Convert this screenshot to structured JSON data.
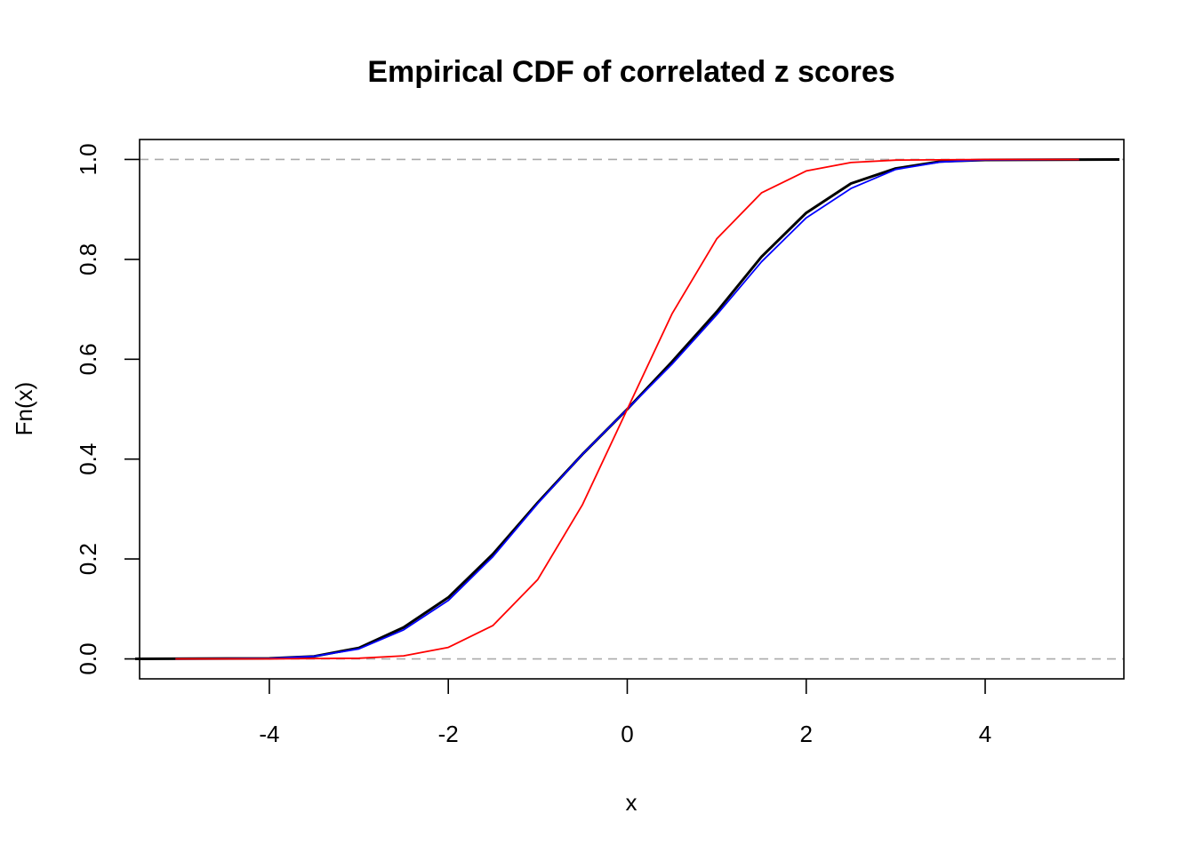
{
  "chart_data": {
    "type": "line",
    "title": "Empirical CDF of correlated z scores",
    "xlabel": "x",
    "ylabel": "Fn(x)",
    "xlim": [
      -5.45,
      5.55
    ],
    "ylim": [
      -0.04,
      1.04
    ],
    "xticks": [
      -4,
      -2,
      0,
      2,
      4
    ],
    "xtick_labels": [
      "-4",
      "-2",
      "0",
      "2",
      "4"
    ],
    "yticks": [
      0.0,
      0.2,
      0.4,
      0.6,
      0.8,
      1.0
    ],
    "ytick_labels": [
      "0.0",
      "0.2",
      "0.4",
      "0.6",
      "0.8",
      "1.0"
    ],
    "reference_lines": [
      0,
      1
    ],
    "grid": false,
    "legend": "none",
    "series": [
      {
        "color": "#000000",
        "x": [
          -5.5,
          -4.0,
          -3.5,
          -3.0,
          -2.5,
          -2.0,
          -1.5,
          -1.0,
          -0.5,
          0.0,
          0.5,
          1.0,
          1.5,
          2.0,
          2.5,
          3.0,
          3.5,
          4.0,
          5.5
        ],
        "y": [
          0.0,
          0.001,
          0.005,
          0.022,
          0.063,
          0.123,
          0.21,
          0.313,
          0.41,
          0.5,
          0.595,
          0.695,
          0.805,
          0.893,
          0.952,
          0.982,
          0.996,
          0.999,
          1.0
        ]
      },
      {
        "color": "#0000ff",
        "x": [
          -5.05,
          -4.0,
          -3.5,
          -3.0,
          -2.5,
          -2.0,
          -1.5,
          -1.0,
          -0.5,
          0.0,
          0.5,
          1.0,
          1.5,
          2.0,
          2.5,
          3.0,
          3.5,
          4.0,
          5.05
        ],
        "y": [
          0.0,
          0.001,
          0.005,
          0.02,
          0.058,
          0.117,
          0.205,
          0.311,
          0.41,
          0.5,
          0.59,
          0.689,
          0.795,
          0.883,
          0.942,
          0.98,
          0.995,
          0.999,
          1.0
        ]
      },
      {
        "color": "#ff0000",
        "x": [
          -5.05,
          -4.0,
          -3.0,
          -2.5,
          -2.0,
          -1.5,
          -1.0,
          -0.5,
          0.0,
          0.5,
          1.0,
          1.5,
          2.0,
          2.5,
          3.0,
          4.0,
          5.05
        ],
        "y": [
          0.0,
          0.0,
          0.0013,
          0.006,
          0.023,
          0.067,
          0.159,
          0.309,
          0.5,
          0.691,
          0.841,
          0.933,
          0.977,
          0.994,
          0.9987,
          1.0,
          1.0
        ]
      }
    ]
  }
}
